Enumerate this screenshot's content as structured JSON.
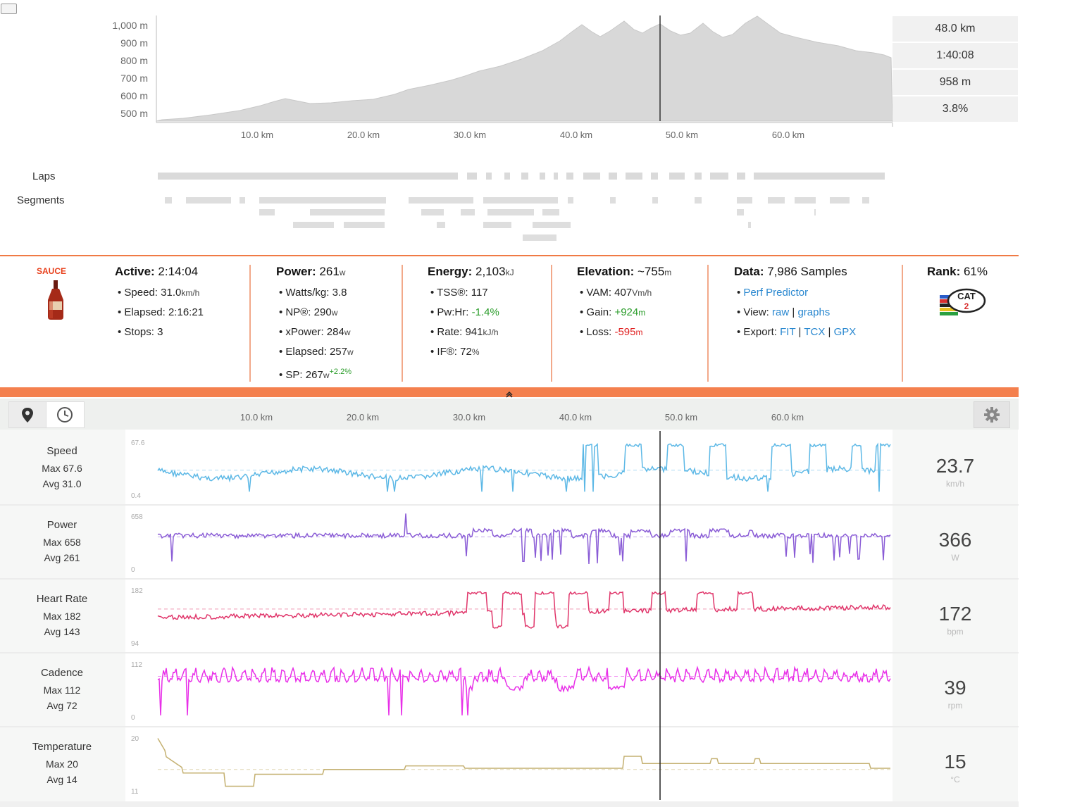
{
  "elevation": {
    "y_ticks": [
      "1,000 m",
      "900 m",
      "800 m",
      "700 m",
      "600 m",
      "500 m"
    ],
    "x_ticks": [
      "10.0 km",
      "20.0 km",
      "30.0 km",
      "40.0 km",
      "50.0 km",
      "60.0 km"
    ],
    "stats": {
      "distance": "48.0 km",
      "time": "1:40:08",
      "altitude": "958 m",
      "grade": "3.8%"
    }
  },
  "laps_label": "Laps",
  "segments_label": "Segments",
  "sauce": {
    "brand": "SAUCE",
    "bottle_icon": "sauce-bottle-icon"
  },
  "summary": {
    "active": {
      "label": "Active:",
      "value": "2:14:04",
      "speed_label": "Speed:",
      "speed_value": "31.0",
      "speed_unit": "km/h",
      "elapsed_label": "Elapsed:",
      "elapsed_value": "2:16:21",
      "stops_label": "Stops:",
      "stops_value": "3"
    },
    "power": {
      "label": "Power:",
      "value": "261",
      "unit": "w",
      "wkg_label": "Watts/kg:",
      "wkg_value": "3.8",
      "np_label": "NP®:",
      "np_value": "290",
      "np_unit": "w",
      "xpower_label": "xPower:",
      "xpower_value": "284",
      "xpower_unit": "w",
      "elapsed_label": "Elapsed:",
      "elapsed_value": "257",
      "elapsed_unit": "w",
      "sp_label": "SP:",
      "sp_value": "267",
      "sp_unit": "w",
      "sp_delta": "+2.2%"
    },
    "energy": {
      "label": "Energy:",
      "value": "2,103",
      "unit": "kJ",
      "tss_label": "TSS®:",
      "tss_value": "117",
      "pwhr_label": "Pw:Hr:",
      "pwhr_value": "-1.4%",
      "rate_label": "Rate:",
      "rate_value": "941",
      "rate_unit": "kJ/h",
      "if_label": "IF®:",
      "if_value": "72",
      "if_unit": "%"
    },
    "elevation": {
      "label": "Elevation:",
      "value": "~755",
      "unit": "m",
      "vam_label": "VAM:",
      "vam_value": "407",
      "vam_unit": "Vm/h",
      "gain_label": "Gain:",
      "gain_value": "+924",
      "gain_unit": "m",
      "loss_label": "Loss:",
      "loss_value": "-595",
      "loss_unit": "m"
    },
    "data": {
      "label": "Data:",
      "value": "7,986 Samples",
      "perf_predictor": "Perf Predictor",
      "view_label": "View:",
      "view_raw": "raw",
      "view_sep": "|",
      "view_graphs": "graphs",
      "export_label": "Export:",
      "export_fit": "FIT",
      "export_tcx": "TCX",
      "export_gpx": "GPX",
      "sep": "|"
    },
    "rank": {
      "label": "Rank:",
      "value": "61%",
      "badge_icon": "cat-2-badge-icon",
      "badge_text": "CAT",
      "badge_num": "2"
    }
  },
  "collapse_icon": "collapse-up-icon",
  "toolbar": {
    "map_icon": "map-pin-icon",
    "time_icon": "clock-icon",
    "settings_icon": "gear-icon"
  },
  "streams_x_ticks": [
    "10.0 km",
    "20.0 km",
    "30.0 km",
    "40.0 km",
    "50.0 km",
    "60.0 km"
  ],
  "streams": [
    {
      "name": "Speed",
      "max_label": "Max",
      "max": "67.6",
      "avg_label": "Avg",
      "avg": "31.0",
      "y_max": "67.6",
      "y_min": "0.4",
      "value": "23.7",
      "unit": "km/h",
      "color": "#5cb8e6"
    },
    {
      "name": "Power",
      "max_label": "Max",
      "max": "658",
      "avg_label": "Avg",
      "avg": "261",
      "y_max": "658",
      "y_min": "0",
      "value": "366",
      "unit": "W",
      "color": "#8a5cd6"
    },
    {
      "name": "Heart Rate",
      "max_label": "Max",
      "max": "182",
      "avg_label": "Avg",
      "avg": "143",
      "y_max": "182",
      "y_min": "94",
      "value": "172",
      "unit": "bpm",
      "color": "#e0356a"
    },
    {
      "name": "Cadence",
      "max_label": "Max",
      "max": "112",
      "avg_label": "Avg",
      "avg": "72",
      "y_max": "112",
      "y_min": "0",
      "value": "39",
      "unit": "rpm",
      "color": "#e830e8"
    },
    {
      "name": "Temperature",
      "max_label": "Max",
      "max": "20",
      "avg_label": "Avg",
      "avg": "14",
      "y_max": "20",
      "y_min": "11",
      "value": "15",
      "unit": "°C",
      "color": "#c4b070"
    }
  ]
}
